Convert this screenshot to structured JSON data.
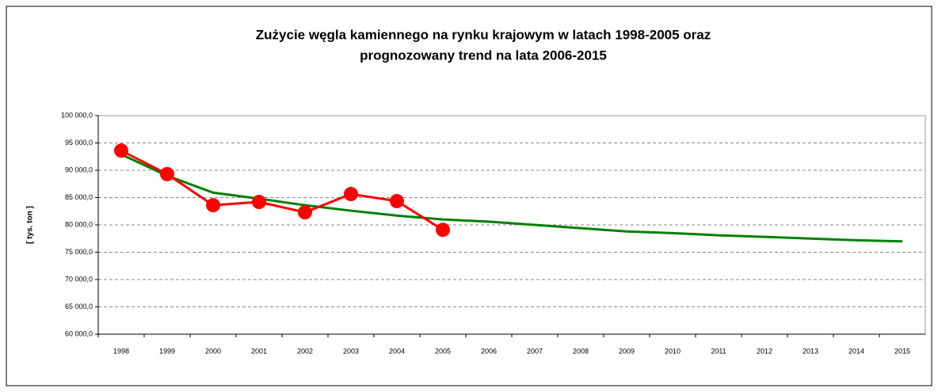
{
  "chart_data": {
    "type": "line",
    "title": [
      "Zużycie węgla kamiennego na rynku krajowym w latach 1998-2005 oraz",
      "prognozowany trend  na lata 2006-2015"
    ],
    "y_label": "[ tys. ton ]",
    "categories": [
      "1998",
      "1999",
      "2000",
      "2001",
      "2002",
      "2003",
      "2004",
      "2005",
      "2006",
      "2007",
      "2008",
      "2009",
      "2010",
      "2011",
      "2012",
      "2013",
      "2014",
      "2015"
    ],
    "series": [
      {
        "color": "#008000",
        "values": [
          92900,
          89000,
          85900,
          84800,
          83600,
          82600,
          81700,
          81000,
          80600,
          80000,
          79400,
          78800,
          78500,
          78100,
          77800,
          77500,
          77200,
          77000
        ]
      },
      {
        "color": "#ff0000",
        "marker": true,
        "values": [
          93600,
          89300,
          83600,
          84200,
          82300,
          85650,
          84350,
          79100,
          null,
          null,
          null,
          null,
          null,
          null,
          null,
          null,
          null,
          null
        ]
      }
    ],
    "ylim": [
      60000,
      100000
    ],
    "yticks": [
      {
        "value": 60000,
        "label": "60 000,0"
      },
      {
        "value": 65000,
        "label": "65 000,0"
      },
      {
        "value": 70000,
        "label": "70 000,0"
      },
      {
        "value": 75000,
        "label": "75 000,0"
      },
      {
        "value": 80000,
        "label": "80 000,0"
      },
      {
        "value": 85000,
        "label": "85 000,0"
      },
      {
        "value": 90000,
        "label": "90 000,0"
      },
      {
        "value": 95000,
        "label": "95 000,0"
      },
      {
        "value": 100000,
        "label": "100 000,0"
      }
    ],
    "grid": true
  }
}
